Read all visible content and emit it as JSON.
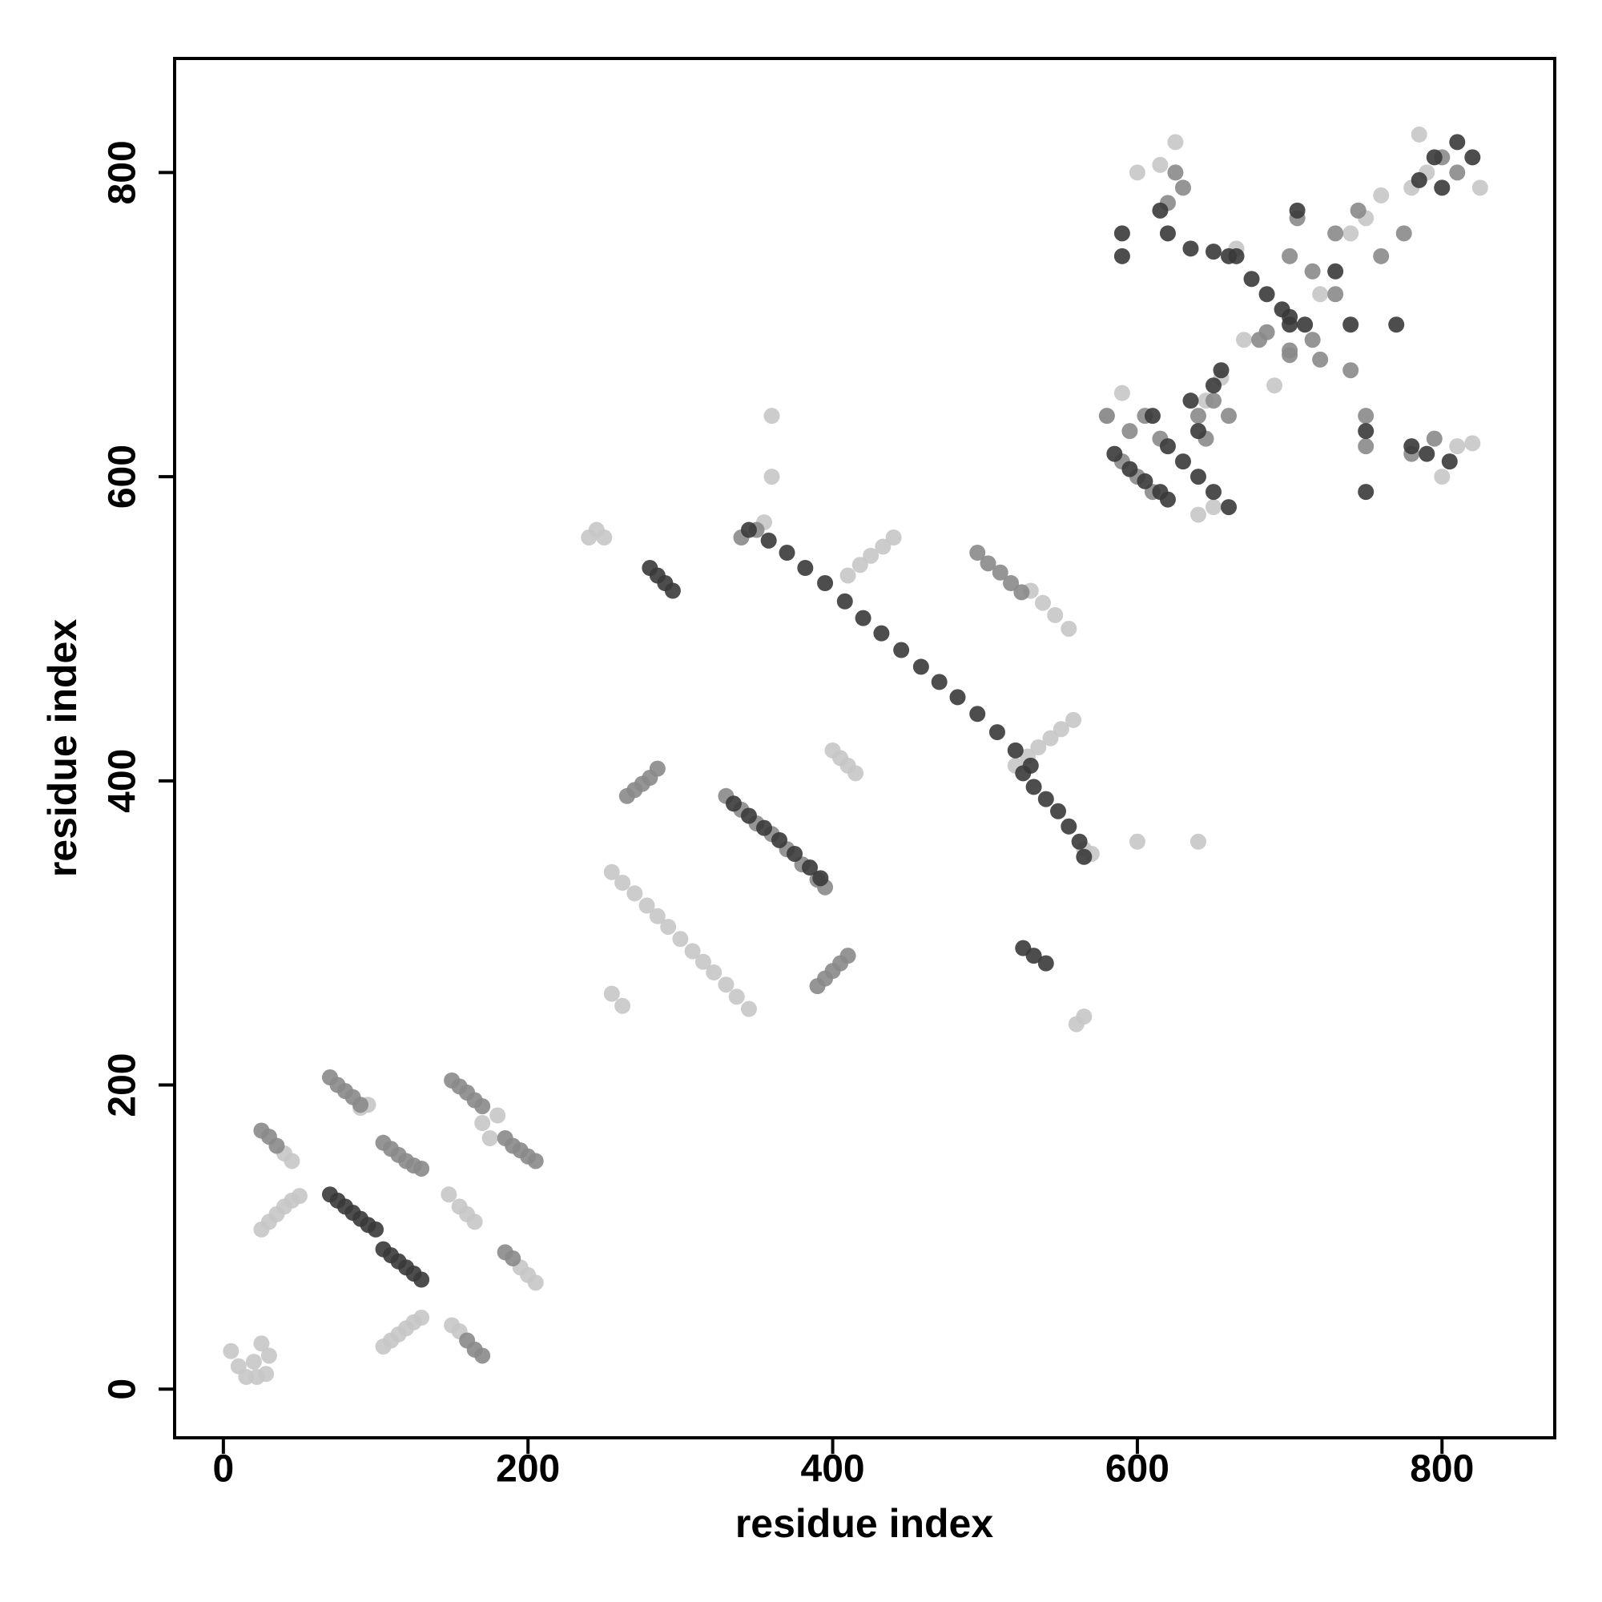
{
  "chart_data": {
    "type": "scatter",
    "xlabel": "residue index",
    "ylabel": "residue index",
    "xlim": [
      -32,
      874
    ],
    "ylim": [
      -32,
      875
    ],
    "xticks": [
      0,
      200,
      400,
      600,
      800
    ],
    "yticks": [
      0,
      200,
      400,
      600,
      800
    ],
    "series": [
      {
        "color": "#c6c6c6",
        "x": [
          5,
          10,
          15,
          20,
          25,
          30,
          28,
          22,
          25,
          30,
          35,
          40,
          45,
          50,
          40,
          45,
          105,
          110,
          115,
          120,
          125,
          130,
          148,
          155,
          160,
          165,
          150,
          155,
          195,
          200,
          205,
          170,
          175,
          180,
          90,
          95,
          240,
          245,
          250,
          255,
          262,
          270,
          278,
          285,
          292,
          300,
          308,
          315,
          322,
          330,
          337,
          345,
          255,
          262,
          400,
          405,
          410,
          415,
          360,
          360,
          355,
          410,
          418,
          425,
          433,
          440,
          520,
          528,
          535,
          543,
          550,
          558,
          530,
          538,
          546,
          555,
          560,
          565,
          600,
          640,
          565,
          570,
          580,
          590,
          640,
          650,
          625,
          615,
          600,
          665,
          670,
          690,
          740,
          750,
          760,
          780,
          790,
          785,
          825,
          810,
          820,
          800,
          645,
          655,
          720
        ],
        "y": [
          25,
          15,
          8,
          18,
          30,
          22,
          10,
          8,
          105,
          110,
          115,
          120,
          124,
          127,
          155,
          150,
          28,
          32,
          36,
          40,
          44,
          47,
          128,
          120,
          115,
          110,
          42,
          38,
          80,
          75,
          70,
          175,
          165,
          180,
          185,
          187,
          560,
          565,
          560,
          340,
          333,
          326,
          318,
          311,
          304,
          296,
          288,
          281,
          274,
          266,
          258,
          250,
          260,
          252,
          420,
          415,
          410,
          405,
          640,
          600,
          570,
          535,
          542,
          548,
          554,
          560,
          410,
          416,
          422,
          428,
          434,
          440,
          525,
          517,
          509,
          500,
          240,
          245,
          360,
          360,
          355,
          352,
          640,
          655,
          575,
          580,
          820,
          805,
          800,
          750,
          690,
          660,
          760,
          770,
          785,
          790,
          800,
          825,
          790,
          620,
          622,
          600,
          650,
          665,
          720
        ]
      },
      {
        "color": "#8a8a8a",
        "x": [
          25,
          30,
          35,
          70,
          75,
          80,
          85,
          90,
          105,
          110,
          115,
          120,
          125,
          130,
          150,
          155,
          160,
          165,
          170,
          185,
          190,
          195,
          200,
          205,
          160,
          165,
          170,
          185,
          190,
          265,
          270,
          275,
          280,
          285,
          390,
          395,
          400,
          405,
          410,
          330,
          340,
          350,
          495,
          502,
          510,
          517,
          524,
          360,
          370,
          380,
          390,
          395,
          340,
          350,
          590,
          600,
          610,
          580,
          595,
          605,
          615,
          640,
          650,
          660,
          645,
          620,
          630,
          625,
          700,
          715,
          730,
          715,
          700,
          685,
          680,
          700,
          720,
          740,
          730,
          745,
          760,
          775,
          800,
          810,
          780,
          795,
          705,
          750,
          750
        ],
        "y": [
          170,
          166,
          160,
          205,
          200,
          196,
          192,
          187,
          162,
          158,
          154,
          150,
          147,
          145,
          203,
          199,
          195,
          190,
          186,
          165,
          160,
          157,
          153,
          150,
          32,
          26,
          22,
          90,
          86,
          390,
          394,
          398,
          402,
          408,
          265,
          270,
          275,
          280,
          285,
          390,
          381,
          372,
          550,
          543,
          537,
          530,
          524,
          365,
          355,
          345,
          335,
          330,
          560,
          565,
          610,
          600,
          590,
          640,
          630,
          640,
          625,
          640,
          650,
          640,
          625,
          780,
          790,
          800,
          745,
          735,
          720,
          690,
          680,
          695,
          690,
          683,
          677,
          670,
          760,
          775,
          745,
          760,
          810,
          800,
          615,
          625,
          770,
          640,
          620
        ]
      },
      {
        "color": "#3a3a3a",
        "x": [
          70,
          75,
          80,
          85,
          90,
          95,
          100,
          105,
          110,
          115,
          120,
          125,
          130,
          280,
          285,
          290,
          295,
          335,
          345,
          355,
          365,
          375,
          385,
          392,
          345,
          358,
          370,
          382,
          395,
          408,
          420,
          432,
          445,
          458,
          470,
          482,
          495,
          508,
          520,
          530,
          525,
          532,
          540,
          548,
          555,
          562,
          565,
          525,
          532,
          540,
          590,
          590,
          615,
          620,
          585,
          595,
          605,
          615,
          620,
          610,
          620,
          630,
          640,
          650,
          660,
          635,
          640,
          650,
          635,
          650,
          660,
          665,
          675,
          685,
          695,
          700,
          700,
          710,
          730,
          740,
          750,
          750,
          770,
          780,
          790,
          805,
          785,
          795,
          810,
          820,
          800,
          705,
          655
        ],
        "y": [
          128,
          124,
          120,
          116,
          112,
          108,
          105,
          92,
          88,
          84,
          80,
          76,
          72,
          540,
          535,
          530,
          525,
          385,
          377,
          369,
          361,
          352,
          343,
          336,
          565,
          558,
          550,
          540,
          530,
          518,
          507,
          497,
          486,
          475,
          465,
          455,
          444,
          432,
          420,
          410,
          405,
          396,
          388,
          380,
          370,
          360,
          350,
          290,
          285,
          280,
          760,
          745,
          775,
          760,
          615,
          605,
          597,
          590,
          585,
          640,
          620,
          610,
          600,
          590,
          580,
          650,
          630,
          660,
          750,
          748,
          745,
          745,
          730,
          720,
          710,
          700,
          705,
          700,
          735,
          700,
          590,
          630,
          700,
          620,
          615,
          610,
          795,
          810,
          820,
          810,
          790,
          775,
          670
        ]
      }
    ]
  }
}
